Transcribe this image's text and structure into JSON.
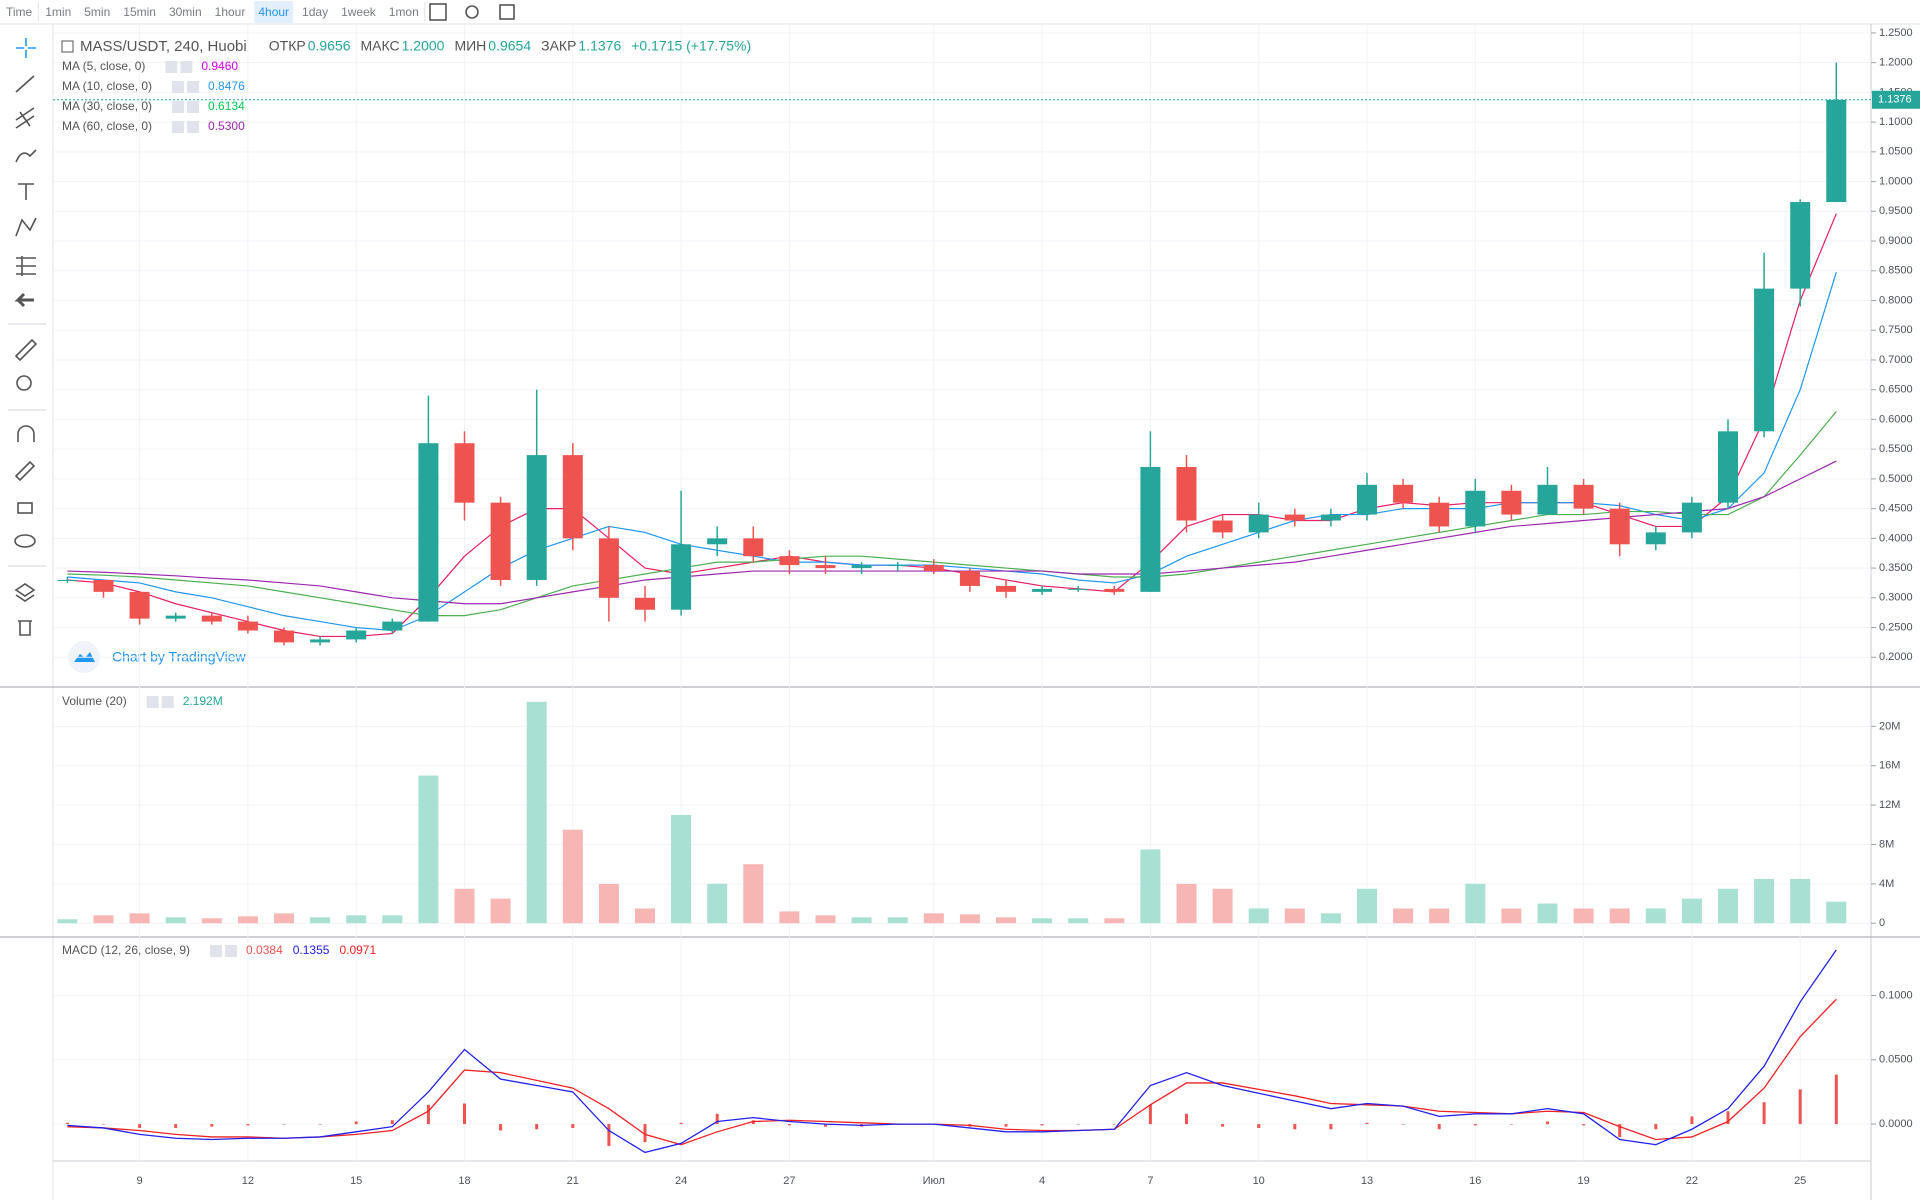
{
  "toolbar": {
    "intervals": [
      "Time",
      "1min",
      "5min",
      "15min",
      "30min",
      "1hour",
      "4hour",
      "1day",
      "1week",
      "1mon"
    ]
  },
  "watermark": "Chart by TradingView",
  "legend": {
    "title": "MASS/USDT, 240, Huobi",
    "ohlc": [
      {
        "label": "ОТКР",
        "value": "0.9656"
      },
      {
        "label": "МАКС",
        "value": "1.2000"
      },
      {
        "label": "МИН",
        "value": "0.9654"
      },
      {
        "label": "ЗАКР",
        "value": "1.1376"
      }
    ],
    "change": "+0.1715 (+17.75%)"
  },
  "chart_data": [
    {
      "type": "candlestick",
      "up_color": "#26a69a",
      "down_color": "#ef5350",
      "categories": [
        null,
        null,
        "9",
        null,
        null,
        "12",
        null,
        null,
        "15",
        null,
        null,
        "18",
        null,
        null,
        "21",
        null,
        null,
        "24",
        null,
        null,
        "27",
        null,
        null,
        null,
        "Июл",
        null,
        null,
        "4",
        null,
        null,
        "7",
        null,
        null,
        "10",
        null,
        null,
        "13",
        null,
        null,
        "16",
        null,
        null,
        "19",
        null,
        null,
        "22",
        null,
        null,
        "25",
        null
      ],
      "open": [
        0.33,
        0.33,
        0.31,
        0.265,
        0.27,
        0.26,
        0.245,
        0.225,
        0.23,
        0.245,
        0.26,
        0.56,
        0.46,
        0.33,
        0.54,
        0.4,
        0.3,
        0.28,
        0.39,
        0.4,
        0.37,
        0.355,
        0.35,
        0.355,
        0.355,
        0.345,
        0.32,
        0.31,
        0.315,
        0.315,
        0.31,
        0.52,
        0.43,
        0.41,
        0.44,
        0.43,
        0.44,
        0.49,
        0.46,
        0.42,
        0.48,
        0.44,
        0.49,
        0.45,
        0.39,
        0.41,
        0.46,
        0.58,
        0.82,
        0.9656
      ],
      "high": [
        0.335,
        0.33,
        0.31,
        0.275,
        0.275,
        0.27,
        0.25,
        0.235,
        0.25,
        0.265,
        0.64,
        0.58,
        0.47,
        0.65,
        0.56,
        0.42,
        0.32,
        0.48,
        0.42,
        0.42,
        0.38,
        0.37,
        0.36,
        0.36,
        0.365,
        0.35,
        0.33,
        0.32,
        0.32,
        0.32,
        0.58,
        0.54,
        0.44,
        0.46,
        0.45,
        0.45,
        0.51,
        0.5,
        0.47,
        0.5,
        0.49,
        0.52,
        0.5,
        0.46,
        0.42,
        0.47,
        0.6,
        0.88,
        0.97,
        1.2
      ],
      "low": [
        0.325,
        0.3,
        0.255,
        0.26,
        0.255,
        0.24,
        0.22,
        0.22,
        0.225,
        0.24,
        0.26,
        0.43,
        0.32,
        0.32,
        0.38,
        0.26,
        0.26,
        0.27,
        0.37,
        0.36,
        0.34,
        0.34,
        0.34,
        0.345,
        0.34,
        0.31,
        0.3,
        0.305,
        0.31,
        0.305,
        0.31,
        0.41,
        0.4,
        0.4,
        0.42,
        0.42,
        0.43,
        0.45,
        0.41,
        0.41,
        0.43,
        0.44,
        0.44,
        0.37,
        0.38,
        0.4,
        0.45,
        0.57,
        0.79,
        0.9654
      ],
      "close": [
        0.33,
        0.31,
        0.265,
        0.27,
        0.26,
        0.245,
        0.225,
        0.23,
        0.245,
        0.26,
        0.56,
        0.46,
        0.33,
        0.54,
        0.4,
        0.3,
        0.28,
        0.39,
        0.4,
        0.37,
        0.355,
        0.35,
        0.355,
        0.355,
        0.345,
        0.32,
        0.31,
        0.315,
        0.315,
        0.31,
        0.52,
        0.43,
        0.41,
        0.44,
        0.43,
        0.44,
        0.49,
        0.46,
        0.42,
        0.48,
        0.44,
        0.49,
        0.45,
        0.39,
        0.41,
        0.46,
        0.58,
        0.82,
        0.9656,
        1.1376
      ],
      "series": [
        {
          "name": "MA (5, close, 0)",
          "color": "#e91e63",
          "value_label": "0.9460",
          "label_color": "#d500f9",
          "values": [
            0.33,
            0.325,
            0.31,
            0.29,
            0.275,
            0.26,
            0.245,
            0.235,
            0.235,
            0.24,
            0.3,
            0.37,
            0.42,
            0.45,
            0.45,
            0.4,
            0.35,
            0.34,
            0.35,
            0.36,
            0.37,
            0.36,
            0.355,
            0.355,
            0.35,
            0.34,
            0.33,
            0.32,
            0.315,
            0.31,
            0.36,
            0.42,
            0.44,
            0.44,
            0.43,
            0.43,
            0.45,
            0.46,
            0.455,
            0.46,
            0.46,
            0.46,
            0.46,
            0.44,
            0.42,
            0.42,
            0.47,
            0.6,
            0.8,
            0.946
          ]
        },
        {
          "name": "MA (10, close, 0)",
          "color": "#2196f3",
          "value_label": "0.8476",
          "label_color": "#2196f3",
          "values": [
            0.335,
            0.33,
            0.325,
            0.31,
            0.3,
            0.285,
            0.27,
            0.26,
            0.25,
            0.245,
            0.27,
            0.31,
            0.35,
            0.38,
            0.4,
            0.42,
            0.41,
            0.39,
            0.38,
            0.37,
            0.36,
            0.36,
            0.355,
            0.355,
            0.355,
            0.35,
            0.345,
            0.34,
            0.33,
            0.325,
            0.34,
            0.37,
            0.39,
            0.41,
            0.43,
            0.44,
            0.44,
            0.45,
            0.45,
            0.45,
            0.46,
            0.46,
            0.46,
            0.455,
            0.44,
            0.43,
            0.45,
            0.51,
            0.65,
            0.8476
          ]
        },
        {
          "name": "MA (30, close, 0)",
          "color": "#4caf50",
          "value_label": "0.6134",
          "label_color": "#00c853",
          "values": [
            0.34,
            0.338,
            0.335,
            0.33,
            0.325,
            0.32,
            0.31,
            0.3,
            0.29,
            0.28,
            0.27,
            0.27,
            0.28,
            0.3,
            0.32,
            0.33,
            0.34,
            0.35,
            0.36,
            0.36,
            0.365,
            0.37,
            0.37,
            0.365,
            0.36,
            0.355,
            0.35,
            0.345,
            0.34,
            0.335,
            0.335,
            0.34,
            0.35,
            0.36,
            0.37,
            0.38,
            0.39,
            0.4,
            0.41,
            0.42,
            0.43,
            0.44,
            0.44,
            0.445,
            0.445,
            0.44,
            0.44,
            0.47,
            0.54,
            0.6134
          ]
        },
        {
          "name": "MA (60, close, 0)",
          "color": "#9c27b0",
          "value_label": "0.5300",
          "label_color": "#9c27b0",
          "values": [
            0.345,
            0.343,
            0.34,
            0.337,
            0.333,
            0.33,
            0.325,
            0.32,
            0.31,
            0.3,
            0.295,
            0.29,
            0.29,
            0.3,
            0.31,
            0.32,
            0.33,
            0.335,
            0.34,
            0.345,
            0.345,
            0.345,
            0.345,
            0.345,
            0.345,
            0.345,
            0.345,
            0.345,
            0.34,
            0.34,
            0.34,
            0.345,
            0.35,
            0.355,
            0.36,
            0.37,
            0.38,
            0.39,
            0.4,
            0.41,
            0.42,
            0.425,
            0.43,
            0.435,
            0.44,
            0.445,
            0.45,
            0.47,
            0.5,
            0.53
          ]
        }
      ],
      "ylim": [
        0.15,
        1.265
      ],
      "yticks": [
        {
          "value": 0.2,
          "label": "0.2000"
        },
        {
          "value": 0.25,
          "label": "0.2500"
        },
        {
          "value": 0.3,
          "label": "0.3000"
        },
        {
          "value": 0.35,
          "label": "0.3500"
        },
        {
          "value": 0.4,
          "label": "0.4000"
        },
        {
          "value": 0.45,
          "label": "0.4500"
        },
        {
          "value": 0.5,
          "label": "0.5000"
        },
        {
          "value": 0.55,
          "label": "0.5500"
        },
        {
          "value": 0.6,
          "label": "0.6000"
        },
        {
          "value": 0.65,
          "label": "0.6500"
        },
        {
          "value": 0.7,
          "label": "0.7000"
        },
        {
          "value": 0.75,
          "label": "0.7500"
        },
        {
          "value": 0.8,
          "label": "0.8000"
        },
        {
          "value": 0.85,
          "label": "0.8500"
        },
        {
          "value": 0.9,
          "label": "0.9000"
        },
        {
          "value": 0.95,
          "label": "0.9500"
        },
        {
          "value": 1.0,
          "label": "1.0000"
        },
        {
          "value": 1.05,
          "label": "1.0500"
        },
        {
          "value": 1.1,
          "label": "1.1000"
        },
        {
          "value": 1.15,
          "label": "1.1500"
        },
        {
          "value": 1.2,
          "label": "1.2000"
        },
        {
          "value": 1.25,
          "label": "1.2500"
        }
      ],
      "grid": true
    },
    {
      "type": "bar",
      "title": "Volume (20)",
      "value_label": "2.192M",
      "label_color": "#26a69a",
      "up_color": "#a8e0d4",
      "down_color": "#f7b6b4",
      "values": [
        400000,
        800000,
        1000000,
        600000,
        500000,
        700000,
        1000000,
        600000,
        800000,
        800000,
        15000000,
        3500000,
        2500000,
        22500000,
        9500000,
        4000000,
        1500000,
        11000000,
        4000000,
        6000000,
        1200000,
        800000,
        600000,
        600000,
        1000000,
        900000,
        600000,
        500000,
        500000,
        500000,
        7500000,
        4000000,
        3500000,
        1500000,
        1500000,
        1000000,
        3500000,
        1500000,
        1500000,
        4000000,
        1500000,
        2000000,
        1500000,
        1500000,
        1500000,
        2500000,
        3500000,
        4500000,
        4500000,
        2192000
      ],
      "ylim": [
        -1400000,
        24000000
      ],
      "yticks": [
        0,
        {
          "value": 4000000,
          "label": "4M"
        },
        {
          "value": 8000000,
          "label": "8M"
        },
        {
          "value": 12000000,
          "label": "12M"
        },
        {
          "value": 16000000,
          "label": "16M"
        },
        {
          "value": 20000000,
          "label": "20M"
        }
      ]
    },
    {
      "type": "macd",
      "title": "MACD (12, 26, close, 9)",
      "histogram": {
        "color": "#ef5350",
        "value_label": "0.0384",
        "values": [
          0.001,
          0,
          -0.003,
          -0.003,
          -0.002,
          -0.001,
          0,
          0,
          0.002,
          0.003,
          0.015,
          0.016,
          -0.005,
          -0.004,
          -0.003,
          -0.017,
          -0.014,
          0.001,
          0.008,
          0.003,
          -0.001,
          -0.002,
          -0.002,
          0,
          0,
          -0.002,
          -0.002,
          -0.001,
          0,
          0,
          0.015,
          0.008,
          -0.002,
          -0.003,
          -0.004,
          -0.004,
          0.001,
          0,
          -0.004,
          -0.001,
          0,
          0.002,
          -0.001,
          -0.01,
          -0.004,
          0.006,
          0.01,
          0.017,
          0.027,
          0.0384
        ]
      },
      "macd": {
        "color": "#2222ee",
        "value_label": "0.1355",
        "values": [
          -0.001,
          -0.003,
          -0.008,
          -0.011,
          -0.012,
          -0.011,
          -0.011,
          -0.01,
          -0.006,
          -0.002,
          0.025,
          0.058,
          0.035,
          0.03,
          0.025,
          -0.005,
          -0.022,
          -0.015,
          0.002,
          0.005,
          0.002,
          0,
          -0.001,
          0,
          0,
          -0.003,
          -0.006,
          -0.006,
          -0.005,
          -0.004,
          0.03,
          0.04,
          0.03,
          0.024,
          0.018,
          0.012,
          0.016,
          0.014,
          0.006,
          0.008,
          0.008,
          0.012,
          0.008,
          -0.012,
          -0.016,
          -0.004,
          0.012,
          0.045,
          0.095,
          0.1355
        ]
      },
      "signal": {
        "color": "#ee2222",
        "value_label": "0.0971",
        "values": [
          -0.002,
          -0.003,
          -0.005,
          -0.008,
          -0.01,
          -0.01,
          -0.011,
          -0.01,
          -0.008,
          -0.005,
          0.01,
          0.042,
          0.04,
          0.034,
          0.028,
          0.012,
          -0.008,
          -0.016,
          -0.006,
          0.002,
          0.003,
          0.002,
          0.001,
          0,
          0,
          -0.001,
          -0.004,
          -0.005,
          -0.005,
          -0.004,
          0.015,
          0.032,
          0.032,
          0.027,
          0.022,
          0.016,
          0.015,
          0.014,
          0.01,
          0.009,
          0.008,
          0.01,
          0.009,
          -0.002,
          -0.012,
          -0.01,
          0.002,
          0.028,
          0.068,
          0.0971
        ]
      },
      "ylim": [
        -0.0287,
        0.1455
      ],
      "yticks": [
        {
          "value": 0,
          "label": "0.0000"
        },
        {
          "value": 0.05,
          "label": "0.0500"
        },
        {
          "value": 0.1,
          "label": "0.1000"
        }
      ]
    }
  ]
}
